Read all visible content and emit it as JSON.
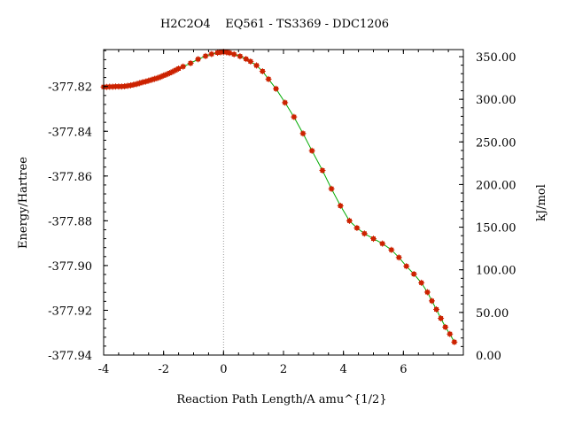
{
  "chart_data": {
    "type": "scatter",
    "title": "H2C2O4    EQ561 - TS3369 - DDC1206",
    "xlabel": "Reaction Path Length/A amu^{1/2}",
    "ylabel": "Energy/Hartree",
    "y2label": "kJ/mol",
    "xlim": [
      -4,
      8
    ],
    "ylim": [
      -377.94,
      -377.8035
    ],
    "y2lim": [
      0,
      358.3
    ],
    "grid": false,
    "ts_marker_x": 0,
    "x_ticks": [
      {
        "v": -4,
        "label": "-4"
      },
      {
        "v": -2,
        "label": "-2"
      },
      {
        "v": 0,
        "label": "0"
      },
      {
        "v": 2,
        "label": "2"
      },
      {
        "v": 4,
        "label": "4"
      },
      {
        "v": 6,
        "label": "6"
      }
    ],
    "y_ticks": [
      {
        "v": -377.82,
        "label": "-377.82"
      },
      {
        "v": -377.84,
        "label": "-377.84"
      },
      {
        "v": -377.86,
        "label": "-377.86"
      },
      {
        "v": -377.88,
        "label": "-377.88"
      },
      {
        "v": -377.9,
        "label": "-377.90"
      },
      {
        "v": -377.92,
        "label": "-377.92"
      },
      {
        "v": -377.94,
        "label": "-377.94"
      }
    ],
    "y2_ticks": [
      {
        "v": 0,
        "label": "0.00"
      },
      {
        "v": 50,
        "label": "50.00"
      },
      {
        "v": 100,
        "label": "100.00"
      },
      {
        "v": 150,
        "label": "150.00"
      },
      {
        "v": 200,
        "label": "200.00"
      },
      {
        "v": 250,
        "label": "250.00"
      },
      {
        "v": 300,
        "label": "300.00"
      },
      {
        "v": 350,
        "label": "350.00"
      }
    ],
    "series": [
      {
        "point_color": "#cc2200",
        "line_color": "#00aa00",
        "x": [
          -4.0,
          -3.9,
          -3.8,
          -3.7,
          -3.6,
          -3.5,
          -3.4,
          -3.3,
          -3.2,
          -3.1,
          -3.0,
          -2.9,
          -2.8,
          -2.7,
          -2.6,
          -2.5,
          -2.4,
          -2.3,
          -2.2,
          -2.1,
          -2.0,
          -1.9,
          -1.8,
          -1.7,
          -1.6,
          -1.5,
          -1.35,
          -1.1,
          -0.85,
          -0.6,
          -0.4,
          -0.2,
          -0.1,
          0.0,
          0.1,
          0.2,
          0.35,
          0.55,
          0.75,
          0.9,
          1.1,
          1.3,
          1.5,
          1.75,
          2.05,
          2.35,
          2.65,
          2.95,
          3.3,
          3.6,
          3.9,
          4.2,
          4.45,
          4.7,
          5.0,
          5.3,
          5.6,
          5.85,
          6.1,
          6.35,
          6.6,
          6.8,
          6.95,
          7.1,
          7.25,
          7.4,
          7.55,
          7.7
        ],
        "y": [
          -377.8202,
          -377.8202,
          -377.8201,
          -377.8201,
          -377.82,
          -377.82,
          -377.82,
          -377.8199,
          -377.8197,
          -377.8195,
          -377.8192,
          -377.8189,
          -377.8185,
          -377.8181,
          -377.8178,
          -377.8174,
          -377.817,
          -377.8166,
          -377.8162,
          -377.8157,
          -377.8151,
          -377.8146,
          -377.814,
          -377.8134,
          -377.8127,
          -377.812,
          -377.8111,
          -377.8096,
          -377.8078,
          -377.8064,
          -377.8055,
          -377.8049,
          -377.8047,
          -377.8045,
          -377.8047,
          -377.805,
          -377.8056,
          -377.8065,
          -377.8077,
          -377.8088,
          -377.8106,
          -377.8132,
          -377.8167,
          -377.821,
          -377.8272,
          -377.8336,
          -377.841,
          -377.8487,
          -377.8575,
          -377.8657,
          -377.8733,
          -377.88,
          -377.8832,
          -377.8857,
          -377.888,
          -377.8902,
          -377.893,
          -377.8964,
          -377.9003,
          -377.9038,
          -377.9077,
          -377.9119,
          -377.9158,
          -377.9196,
          -377.9236,
          -377.9275,
          -377.9306,
          -377.9342
        ]
      }
    ]
  }
}
